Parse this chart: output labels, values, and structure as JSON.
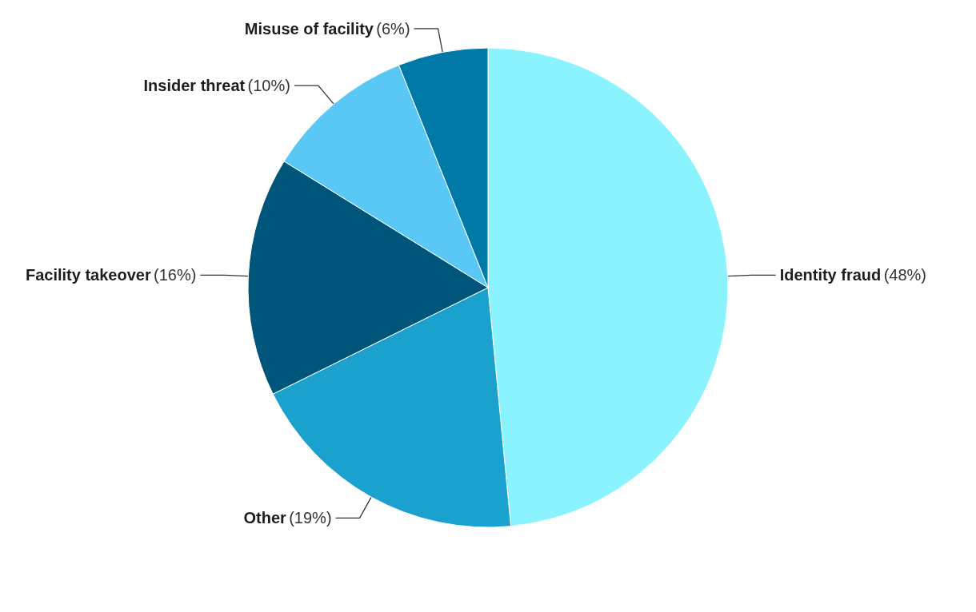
{
  "chart_data": {
    "type": "pie",
    "categories": [
      "Identity fraud",
      "Other",
      "Facility takeover",
      "Insider threat",
      "Misuse of facility"
    ],
    "values": [
      48,
      19,
      16,
      10,
      6
    ],
    "value_labels": [
      "(48%)",
      "(19%)",
      "(16%)",
      "(10%)",
      "(6%)"
    ],
    "colors": [
      "#8af3fd",
      "#1aa1cd",
      "#00557b",
      "#5ac8f5",
      "#0079a6"
    ],
    "legend": false
  }
}
